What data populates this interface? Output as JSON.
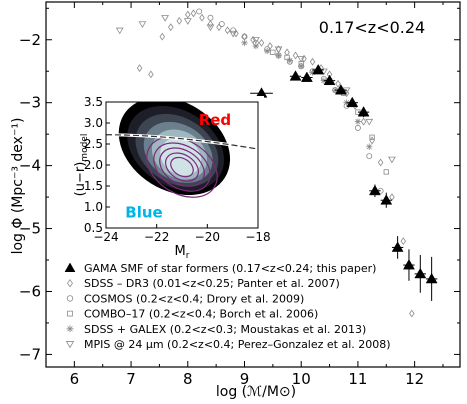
{
  "chart_data": {
    "type": "scatter",
    "annotation": "0.17<z<0.24",
    "xlabel": "log (ℳ/M⊙)",
    "ylabel": "log Φ (Mpc⁻³ dex⁻¹)",
    "xlim": [
      5.5,
      12.8
    ],
    "ylim": [
      -7.2,
      -1.4
    ],
    "xticks": [
      "6",
      "7",
      "8",
      "9",
      "10",
      "11",
      "12"
    ],
    "yticks": [
      "−2",
      "−3",
      "−4",
      "−5",
      "−6",
      "−7"
    ],
    "legend_position": "bottom-left",
    "series": [
      {
        "name": "GAMA SMF of star formers (0.17<z<0.24; this paper)",
        "marker": "filled-triangle",
        "color": "#000000",
        "x": [
          9.3,
          9.9,
          10.1,
          10.3,
          10.5,
          10.7,
          10.9,
          11.1,
          11.3,
          11.5,
          11.7,
          11.9,
          12.1,
          12.3
        ],
        "y": [
          -2.85,
          -2.58,
          -2.6,
          -2.48,
          -2.65,
          -2.8,
          -3.0,
          -3.15,
          -4.4,
          -4.55,
          -5.3,
          -5.58,
          -5.72,
          -5.8
        ],
        "xerr": [
          0.2,
          0.1,
          0.1,
          0.1,
          0.1,
          0.1,
          0.1,
          0.1,
          0.1,
          0.1,
          0.1,
          0.1,
          0.1,
          0.1
        ],
        "yerr": [
          0.04,
          0.04,
          0.04,
          0.04,
          0.04,
          0.05,
          0.06,
          0.08,
          0.1,
          0.12,
          0.18,
          0.25,
          0.3,
          0.35
        ]
      },
      {
        "name": "SDSS – DR3 (0.01<z<0.25; Panter et al. 2007)",
        "marker": "open-diamond",
        "color": "#8a8a8a",
        "x": [
          7.15,
          7.35,
          7.55,
          7.7,
          7.85,
          8.0,
          8.1,
          8.25,
          8.4,
          8.55,
          8.7,
          8.85,
          9.0,
          9.15,
          9.3,
          9.45,
          9.6,
          9.75,
          9.9,
          10.05,
          10.2,
          10.35,
          10.5,
          10.65,
          10.8,
          10.95,
          11.1,
          11.25,
          11.4,
          11.6,
          11.8,
          11.95
        ],
        "y": [
          -2.45,
          -2.55,
          -1.95,
          -1.8,
          -1.7,
          -1.6,
          -1.58,
          -1.65,
          -1.75,
          -1.8,
          -1.85,
          -1.9,
          -1.95,
          -2.0,
          -2.05,
          -2.1,
          -2.15,
          -2.2,
          -2.25,
          -2.3,
          -2.35,
          -2.45,
          -2.55,
          -2.7,
          -2.85,
          -3.05,
          -3.3,
          -3.6,
          -3.95,
          -4.5,
          -5.2,
          -6.35
        ]
      },
      {
        "name": "COSMOS (0.2<z<0.4; Drory et al. 2009)",
        "marker": "open-circle",
        "color": "#8a8a8a",
        "x": [
          8.2,
          8.4,
          8.6,
          8.8,
          9.0,
          9.2,
          9.4,
          9.6,
          9.8,
          10.0,
          10.2,
          10.4,
          10.6,
          10.8,
          11.0,
          11.2,
          11.4
        ],
        "y": [
          -1.55,
          -1.65,
          -1.75,
          -1.85,
          -1.95,
          -2.05,
          -2.15,
          -2.25,
          -2.35,
          -2.42,
          -2.5,
          -2.62,
          -2.8,
          -3.05,
          -3.4,
          -3.85,
          -4.4
        ]
      },
      {
        "name": "COMBO–17 (0.2<z<0.4; Borch et al. 2006)",
        "marker": "open-square",
        "color": "#8a8a8a",
        "x": [
          9.5,
          9.75,
          10.0,
          10.25,
          10.5,
          10.75,
          11.0,
          11.25,
          11.5
        ],
        "y": [
          -2.2,
          -2.28,
          -2.38,
          -2.5,
          -2.65,
          -2.85,
          -3.15,
          -3.55,
          -4.1
        ]
      },
      {
        "name": "SDSS + GALEX (0.2<z<0.3; Moustakas et al. 2013)",
        "marker": "asterisk",
        "color": "#8a8a8a",
        "x": [
          9.0,
          9.2,
          9.4,
          9.6,
          9.8,
          10.0,
          10.2,
          10.4,
          10.6,
          10.8,
          11.0,
          11.2
        ],
        "y": [
          -2.05,
          -2.1,
          -2.18,
          -2.25,
          -2.33,
          -2.42,
          -2.52,
          -2.65,
          -2.8,
          -3.0,
          -3.3,
          -3.7
        ]
      },
      {
        "name": "MPIS @ 24 μm (0.2<z<0.4; Perez–Gonzalez et al. 2008)",
        "marker": "open-triangle-down",
        "color": "#8a8a8a",
        "x": [
          6.8,
          7.2,
          7.6,
          8.0,
          8.4,
          8.8,
          9.2,
          9.6,
          10.0,
          10.4,
          10.8,
          11.2,
          11.6
        ],
        "y": [
          -1.85,
          -1.75,
          -1.65,
          -1.7,
          -1.8,
          -1.9,
          -2.0,
          -2.15,
          -2.3,
          -2.5,
          -2.8,
          -3.3,
          -3.9
        ]
      }
    ],
    "inset": {
      "type": "heatmap",
      "xlabel": "M",
      "xlabel_sub": "r",
      "ylabel": "(u−r)",
      "ylabel_sub": "model",
      "xlim": [
        -24,
        -18
      ],
      "ylim": [
        0.5,
        3.5
      ],
      "xticks": [
        "−24",
        "−22",
        "−20",
        "−18"
      ],
      "yticks": [
        "0.5",
        "1.0",
        "1.5",
        "2.0",
        "2.5",
        "3.0",
        "3.5"
      ],
      "label_red": "Red",
      "label_blue": "Blue",
      "color_red": "#ff0000",
      "color_blue": "#00b4e6",
      "contour_color": "#7b2a7e",
      "divider_color": "#333333"
    }
  }
}
